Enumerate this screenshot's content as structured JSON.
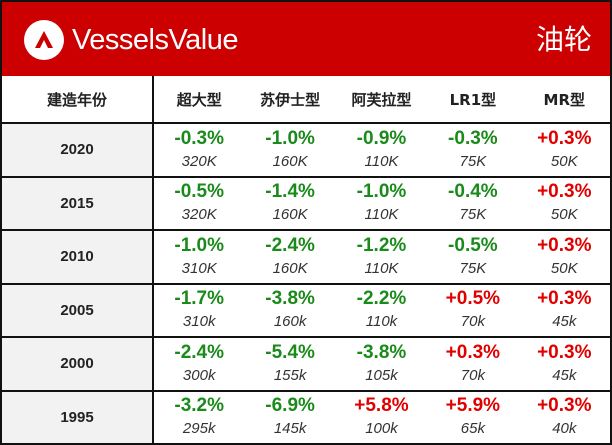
{
  "header": {
    "brand": "VesselsValue",
    "title": "油轮",
    "accent": "#cc0000"
  },
  "table": {
    "columns": [
      "建造年份",
      "超大型",
      "苏伊士型",
      "阿芙拉型",
      "LR1型",
      "MR型"
    ],
    "rows": [
      {
        "year": "2020",
        "cells": [
          {
            "change": "-0.3%",
            "value": "320K"
          },
          {
            "change": "-1.0%",
            "value": "160K"
          },
          {
            "change": "-0.9%",
            "value": "110K"
          },
          {
            "change": "-0.3%",
            "value": "75K"
          },
          {
            "change": "+0.3%",
            "value": "50K"
          }
        ]
      },
      {
        "year": "2015",
        "cells": [
          {
            "change": "-0.5%",
            "value": "320K"
          },
          {
            "change": "-1.4%",
            "value": "160K"
          },
          {
            "change": "-1.0%",
            "value": "110K"
          },
          {
            "change": "-0.4%",
            "value": "75K"
          },
          {
            "change": "+0.3%",
            "value": "50K"
          }
        ]
      },
      {
        "year": "2010",
        "cells": [
          {
            "change": "-1.0%",
            "value": "310K"
          },
          {
            "change": "-2.4%",
            "value": "160K"
          },
          {
            "change": "-1.2%",
            "value": "110K"
          },
          {
            "change": "-0.5%",
            "value": "75K"
          },
          {
            "change": "+0.3%",
            "value": "50K"
          }
        ]
      },
      {
        "year": "2005",
        "cells": [
          {
            "change": "-1.7%",
            "value": "310k"
          },
          {
            "change": "-3.8%",
            "value": "160k"
          },
          {
            "change": "-2.2%",
            "value": "110k"
          },
          {
            "change": "+0.5%",
            "value": "70k"
          },
          {
            "change": "+0.3%",
            "value": "45k"
          }
        ]
      },
      {
        "year": "2000",
        "cells": [
          {
            "change": "-2.4%",
            "value": "300k"
          },
          {
            "change": "-5.4%",
            "value": "155k"
          },
          {
            "change": "-3.8%",
            "value": "105k"
          },
          {
            "change": "+0.3%",
            "value": "70k"
          },
          {
            "change": "+0.3%",
            "value": "45k"
          }
        ]
      },
      {
        "year": "1995",
        "cells": [
          {
            "change": "-3.2%",
            "value": "295k"
          },
          {
            "change": "-6.9%",
            "value": "145k"
          },
          {
            "change": "+5.8%",
            "value": "100k"
          },
          {
            "change": "+5.9%",
            "value": "65k"
          },
          {
            "change": "+0.3%",
            "value": "40k"
          }
        ]
      }
    ],
    "colors": {
      "negative": "#1a8a1a",
      "positive": "#e00000",
      "year_bg": "#f2f2f2"
    }
  }
}
